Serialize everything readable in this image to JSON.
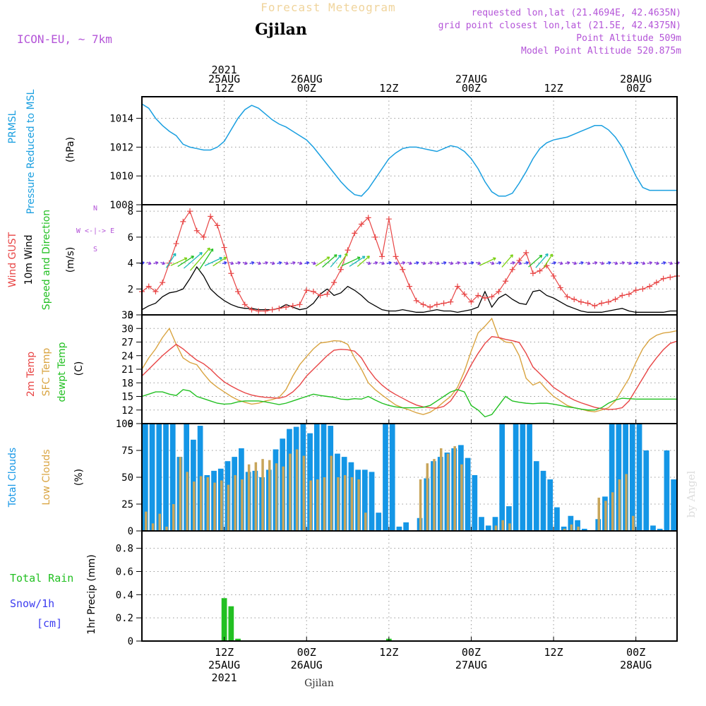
{
  "header": {
    "top_title": "Forecast Meteogram",
    "location": "Gjilan",
    "model": "ICON-EU, ~ 7km",
    "requested": "requested lon,lat (21.4694E, 42.4635N)",
    "grid_point": "grid point closest lon,lat (21.5E, 42.4375N)",
    "point_alt": "Point Altitude 509m",
    "model_alt": "Model Point Altitude 520.875m",
    "watermark": "by Angel",
    "bottom_location": "Gjilan"
  },
  "colors": {
    "pressure": "#1a9fe0",
    "gust": "#e84545",
    "wind": "#000000",
    "temp": "#e84545",
    "sfc": "#d9a441",
    "dew": "#22c022",
    "total_cloud": "#1496e6",
    "low_cloud": "#c8a55a",
    "rain": "#22c022",
    "snow": "#3c3cf0",
    "label_purple": "#b455d8",
    "grid": "#999999"
  },
  "time_axis": {
    "top_ticks": [
      {
        "hour": 12,
        "lines": [
          "2021",
          "25AUG",
          "12Z"
        ]
      },
      {
        "hour": 24,
        "lines": [
          "26AUG",
          "00Z"
        ]
      },
      {
        "hour": 36,
        "lines": [
          "12Z"
        ]
      },
      {
        "hour": 48,
        "lines": [
          "27AUG",
          "00Z"
        ]
      },
      {
        "hour": 60,
        "lines": [
          "12Z"
        ]
      },
      {
        "hour": 72,
        "lines": [
          "28AUG",
          "00Z"
        ]
      }
    ],
    "bottom_ticks": [
      {
        "hour": 12,
        "lines": [
          "12Z",
          "25AUG",
          "2021"
        ]
      },
      {
        "hour": 24,
        "lines": [
          "00Z",
          "26AUG"
        ]
      },
      {
        "hour": 36,
        "lines": [
          "12Z"
        ]
      },
      {
        "hour": 48,
        "lines": [
          "00Z",
          "27AUG"
        ]
      },
      {
        "hour": 60,
        "lines": [
          "12Z"
        ]
      },
      {
        "hour": 72,
        "lines": [
          "00Z",
          "28AUG"
        ]
      }
    ]
  },
  "panel_labels": {
    "pressure": {
      "a": "PRMSL",
      "b": "Pressure Reduced to MSL",
      "unit": "(hPa)"
    },
    "wind": {
      "gust": "Wind GUST",
      "wind": "10m Wind",
      "dir": "Speed and Direction",
      "unit": "(m/s)",
      "compass_n": "N",
      "compass_s": "S",
      "compass_ew": "W <-|-> E"
    },
    "temp": {
      "t2m": "2m Temp",
      "sfc": "SFC Temp",
      "dew": "dewpt Temp",
      "unit": "(C)"
    },
    "cloud": {
      "total": "Total Clouds",
      "low": "Low Clouds",
      "unit": "(%)"
    },
    "precip": {
      "rain": "Total  Rain",
      "snow": "Snow/1h",
      "snow_unit": "[cm]",
      "unit": "1hr Precip (mm)"
    }
  },
  "chart_data": [
    {
      "type": "line",
      "title": "PRMSL Pressure Reduced to MSL",
      "ylabel": "(hPa)",
      "ylim": [
        1008,
        1015.5
      ],
      "yticks": [
        1008,
        1010,
        1012,
        1014
      ],
      "series": [
        {
          "name": "PRMSL",
          "x": [
            0,
            1,
            2,
            3,
            4,
            5,
            6,
            7,
            8,
            9,
            10,
            11,
            12,
            13,
            14,
            15,
            16,
            17,
            18,
            19,
            20,
            21,
            22,
            23,
            24,
            25,
            26,
            27,
            28,
            29,
            30,
            31,
            32,
            33,
            34,
            35,
            36,
            37,
            38,
            39,
            40,
            41,
            42,
            43,
            44,
            45,
            46,
            47,
            48,
            49,
            50,
            51,
            52,
            53,
            54,
            55,
            56,
            57,
            58,
            59,
            60,
            61,
            62,
            63,
            64,
            65,
            66,
            67,
            68,
            69,
            70,
            71,
            72,
            73,
            74,
            75,
            76,
            77,
            78
          ],
          "values": [
            1015.0,
            1014.7,
            1014.0,
            1013.5,
            1013.1,
            1012.8,
            1012.2,
            1012.0,
            1011.9,
            1011.8,
            1011.8,
            1012.0,
            1012.4,
            1013.2,
            1014.0,
            1014.6,
            1014.9,
            1014.7,
            1014.3,
            1013.9,
            1013.6,
            1013.4,
            1013.1,
            1012.8,
            1012.5,
            1012.0,
            1011.4,
            1010.8,
            1010.2,
            1009.6,
            1009.1,
            1008.7,
            1008.6,
            1009.1,
            1009.8,
            1010.5,
            1011.2,
            1011.6,
            1011.9,
            1012.0,
            1012.0,
            1011.9,
            1011.8,
            1011.7,
            1011.9,
            1012.1,
            1012.0,
            1011.7,
            1011.2,
            1010.5,
            1009.6,
            1008.9,
            1008.6,
            1008.6,
            1008.8,
            1009.5,
            1010.3,
            1011.2,
            1011.9,
            1012.3,
            1012.5,
            1012.6,
            1012.7,
            1012.9,
            1013.1,
            1013.3,
            1013.5,
            1013.5,
            1013.2,
            1012.7,
            1012.0,
            1011.0,
            1010.0,
            1009.2,
            1009.0,
            1009.0,
            1009.0,
            1009.0,
            1009.0
          ]
        }
      ]
    },
    {
      "type": "line",
      "title": "Wind GUST / 10m Wind Speed and Direction",
      "ylabel": "(m/s)",
      "ylim": [
        0,
        8.5
      ],
      "yticks": [
        0,
        2,
        4,
        6,
        8
      ],
      "series": [
        {
          "name": "Wind GUST",
          "values": [
            1.8,
            2.2,
            1.8,
            2.5,
            4.0,
            5.5,
            7.2,
            8.0,
            6.5,
            6.0,
            7.6,
            6.9,
            5.2,
            3.2,
            1.8,
            0.8,
            0.4,
            0.3,
            0.3,
            0.4,
            0.5,
            0.6,
            0.7,
            0.8,
            1.9,
            1.8,
            1.5,
            1.6,
            2.5,
            3.5,
            5.0,
            6.3,
            7.0,
            7.5,
            6.0,
            4.5,
            7.4,
            4.5,
            3.5,
            2.2,
            1.1,
            0.8,
            0.6,
            0.8,
            0.9,
            1.0,
            2.2,
            1.6,
            1.0,
            1.5,
            1.3,
            1.4,
            1.8,
            2.6,
            3.5,
            4.2,
            4.8,
            3.2,
            3.4,
            3.8,
            3.0,
            2.1,
            1.4,
            1.2,
            1.0,
            0.9,
            0.7,
            0.9,
            1.0,
            1.2,
            1.5,
            1.6,
            1.9,
            2.0,
            2.2,
            2.5,
            2.8,
            2.9,
            3.0
          ]
        },
        {
          "name": "10m Wind",
          "values": [
            0.4,
            0.7,
            0.9,
            1.4,
            1.7,
            1.8,
            2.0,
            2.8,
            3.7,
            3.0,
            2.0,
            1.5,
            1.1,
            0.8,
            0.6,
            0.5,
            0.5,
            0.4,
            0.4,
            0.4,
            0.5,
            0.8,
            0.6,
            0.4,
            0.5,
            0.9,
            1.6,
            2.0,
            1.5,
            1.7,
            2.2,
            1.9,
            1.5,
            1.0,
            0.7,
            0.4,
            0.3,
            0.3,
            0.4,
            0.3,
            0.2,
            0.2,
            0.3,
            0.4,
            0.3,
            0.3,
            0.2,
            0.3,
            0.4,
            0.6,
            1.8,
            0.6,
            1.3,
            1.6,
            1.2,
            0.9,
            0.8,
            1.8,
            1.9,
            1.5,
            1.3,
            1.0,
            0.7,
            0.5,
            0.3,
            0.2,
            0.2,
            0.2,
            0.3,
            0.4,
            0.5,
            0.3,
            0.2,
            0.2,
            0.2,
            0.2,
            0.2,
            0.3,
            0.3
          ]
        }
      ]
    },
    {
      "type": "line",
      "title": "2m Temp / SFC Temp / dewpt Temp",
      "ylabel": "(C)",
      "ylim": [
        9,
        33
      ],
      "yticks": [
        9,
        12,
        15,
        18,
        21,
        24,
        27,
        30,
        33
      ],
      "series": [
        {
          "name": "2m Temp",
          "values": [
            19.5,
            21.0,
            22.5,
            24.0,
            25.3,
            26.5,
            25.5,
            24.2,
            23.0,
            22.2,
            21.0,
            19.5,
            18.2,
            17.3,
            16.5,
            15.8,
            15.3,
            15.0,
            14.8,
            14.7,
            14.6,
            15.0,
            16.0,
            17.5,
            19.5,
            21.0,
            22.5,
            24.0,
            25.2,
            25.4,
            25.3,
            25.0,
            23.5,
            21.0,
            19.0,
            17.5,
            16.3,
            15.4,
            14.6,
            13.8,
            13.1,
            12.7,
            12.5,
            12.4,
            12.8,
            14.0,
            16.2,
            19.0,
            22.0,
            24.5,
            26.7,
            28.2,
            28.0,
            27.6,
            27.3,
            26.9,
            24.5,
            21.5,
            20.0,
            18.5,
            17.0,
            16.0,
            15.0,
            14.2,
            13.6,
            13.1,
            12.6,
            12.3,
            12.1,
            12.2,
            12.5,
            14.0,
            16.5,
            19.0,
            21.5,
            23.5,
            25.3,
            26.7,
            27.2
          ]
        },
        {
          "name": "SFC Temp",
          "values": [
            21.0,
            23.5,
            25.5,
            28.0,
            30.0,
            26.5,
            23.5,
            22.5,
            22.0,
            20.0,
            18.2,
            17.0,
            16.0,
            15.0,
            14.2,
            13.7,
            13.3,
            13.5,
            14.0,
            14.3,
            14.8,
            16.5,
            19.5,
            22.0,
            23.8,
            25.5,
            26.8,
            27.0,
            27.3,
            27.2,
            26.5,
            23.5,
            21.0,
            18.0,
            16.5,
            15.3,
            14.2,
            13.1,
            12.5,
            12.0,
            11.4,
            11.0,
            11.5,
            12.5,
            13.8,
            15.0,
            17.0,
            20.5,
            25.0,
            29.0,
            30.5,
            32.2,
            28.0,
            27.0,
            26.8,
            24.0,
            19.0,
            17.5,
            18.2,
            16.5,
            15.0,
            14.0,
            13.0,
            12.5,
            12.2,
            11.8,
            11.6,
            12.0,
            12.5,
            14.0,
            16.5,
            19.0,
            22.5,
            25.5,
            27.5,
            28.5,
            29.0,
            29.2,
            29.5
          ]
        },
        {
          "name": "dewpt Temp",
          "values": [
            15.0,
            15.5,
            16.0,
            16.0,
            15.5,
            15.2,
            16.5,
            16.2,
            15.0,
            14.5,
            14.0,
            13.5,
            13.3,
            13.4,
            13.8,
            14.0,
            14.0,
            14.0,
            13.8,
            13.5,
            13.2,
            13.5,
            14.0,
            14.5,
            15.0,
            15.5,
            15.2,
            15.0,
            14.8,
            14.4,
            14.3,
            14.5,
            14.4,
            15.0,
            14.2,
            13.5,
            13.0,
            12.7,
            12.5,
            12.5,
            12.5,
            12.6,
            13.0,
            14.0,
            15.0,
            16.0,
            16.5,
            16.0,
            13.0,
            12.0,
            10.5,
            11.0,
            13.0,
            15.0,
            14.0,
            13.7,
            13.5,
            13.4,
            13.5,
            13.5,
            13.3,
            13.0,
            12.7,
            12.5,
            12.2,
            12.0,
            12.0,
            12.5,
            13.5,
            14.2,
            14.6,
            14.5,
            14.4,
            14.4,
            14.4,
            14.4,
            14.4,
            14.4,
            14.4
          ]
        }
      ]
    },
    {
      "type": "bar",
      "title": "Total Clouds / Low Clouds",
      "ylabel": "(%)",
      "ylim": [
        0,
        100
      ],
      "yticks": [
        0,
        25,
        50,
        75,
        100
      ],
      "series": [
        {
          "name": "Total Clouds",
          "values": [
            100,
            100,
            100,
            100,
            100,
            69,
            100,
            85,
            98,
            52,
            56,
            58,
            65,
            69,
            77,
            55,
            56,
            50,
            57,
            76,
            86,
            95,
            97,
            100,
            91,
            100,
            100,
            98,
            72,
            69,
            64,
            57,
            57,
            55,
            17,
            100,
            100,
            4,
            8,
            0,
            12,
            49,
            65,
            69,
            73,
            77,
            80,
            68,
            52,
            13,
            5,
            13,
            100,
            23,
            100,
            100,
            100,
            65,
            56,
            48,
            22,
            4,
            14,
            10,
            2,
            0,
            11,
            32,
            100,
            100,
            100,
            100,
            100,
            75,
            5,
            2,
            75,
            48
          ]
        },
        {
          "name": "Low Clouds",
          "values": [
            18,
            7,
            16,
            4,
            25,
            69,
            55,
            46,
            51,
            50,
            45,
            47,
            43,
            52,
            48,
            62,
            64,
            67,
            66,
            63,
            60,
            72,
            76,
            70,
            47,
            48,
            50,
            70,
            50,
            52,
            50,
            48,
            17,
            0,
            0,
            0,
            0,
            0,
            0,
            0,
            48,
            63,
            67,
            77,
            72,
            79,
            62,
            0,
            0,
            0,
            0,
            5,
            10,
            7,
            0,
            0,
            0,
            0,
            0,
            0,
            0,
            2,
            6,
            4,
            0,
            0,
            31,
            28,
            36,
            48,
            53,
            14,
            0,
            0,
            0,
            0,
            0,
            0
          ]
        }
      ]
    },
    {
      "type": "bar",
      "title": "1hr Precip",
      "ylabel": "1hr Precip (mm)",
      "ylim": [
        0,
        0.95
      ],
      "yticks": [
        0,
        0.2,
        0.4,
        0.6,
        0.8
      ],
      "series": [
        {
          "name": "Total Rain",
          "points": [
            {
              "hour": 12,
              "value": 0.37
            },
            {
              "hour": 13,
              "value": 0.3
            },
            {
              "hour": 14,
              "value": 0.02
            },
            {
              "hour": 36,
              "value": 0.02
            }
          ]
        }
      ]
    }
  ]
}
